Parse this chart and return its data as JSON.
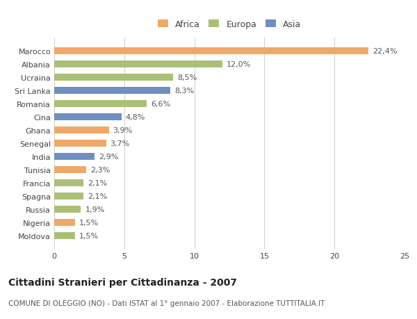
{
  "categories": [
    "Marocco",
    "Albania",
    "Ucraina",
    "Sri Lanka",
    "Romania",
    "Cina",
    "Ghana",
    "Senegal",
    "India",
    "Tunisia",
    "Francia",
    "Spagna",
    "Russia",
    "Nigeria",
    "Moldova"
  ],
  "values": [
    22.4,
    12.0,
    8.5,
    8.3,
    6.6,
    4.8,
    3.9,
    3.7,
    2.9,
    2.3,
    2.1,
    2.1,
    1.9,
    1.5,
    1.5
  ],
  "labels": [
    "22,4%",
    "12,0%",
    "8,5%",
    "8,3%",
    "6,6%",
    "4,8%",
    "3,9%",
    "3,7%",
    "2,9%",
    "2,3%",
    "2,1%",
    "2,1%",
    "1,9%",
    "1,5%",
    "1,5%"
  ],
  "continents": [
    "Africa",
    "Europa",
    "Europa",
    "Asia",
    "Europa",
    "Asia",
    "Africa",
    "Africa",
    "Asia",
    "Africa",
    "Europa",
    "Europa",
    "Europa",
    "Africa",
    "Europa"
  ],
  "colors": {
    "Africa": "#F0A868",
    "Europa": "#AABF78",
    "Asia": "#6E8FBF"
  },
  "legend_labels": [
    "Africa",
    "Europa",
    "Asia"
  ],
  "legend_colors": [
    "#F0A868",
    "#AABF78",
    "#6E8FBF"
  ],
  "title": "Cittadini Stranieri per Cittadinanza - 2007",
  "subtitle": "COMUNE DI OLEGGIO (NO) - Dati ISTAT al 1° gennaio 2007 - Elaborazione TUTTITALIA.IT",
  "xlim": [
    0,
    25
  ],
  "xticks": [
    0,
    5,
    10,
    15,
    20,
    25
  ],
  "background_color": "#ffffff",
  "bar_height": 0.55,
  "label_fontsize": 8,
  "tick_fontsize": 8,
  "title_fontsize": 10,
  "subtitle_fontsize": 7.5
}
